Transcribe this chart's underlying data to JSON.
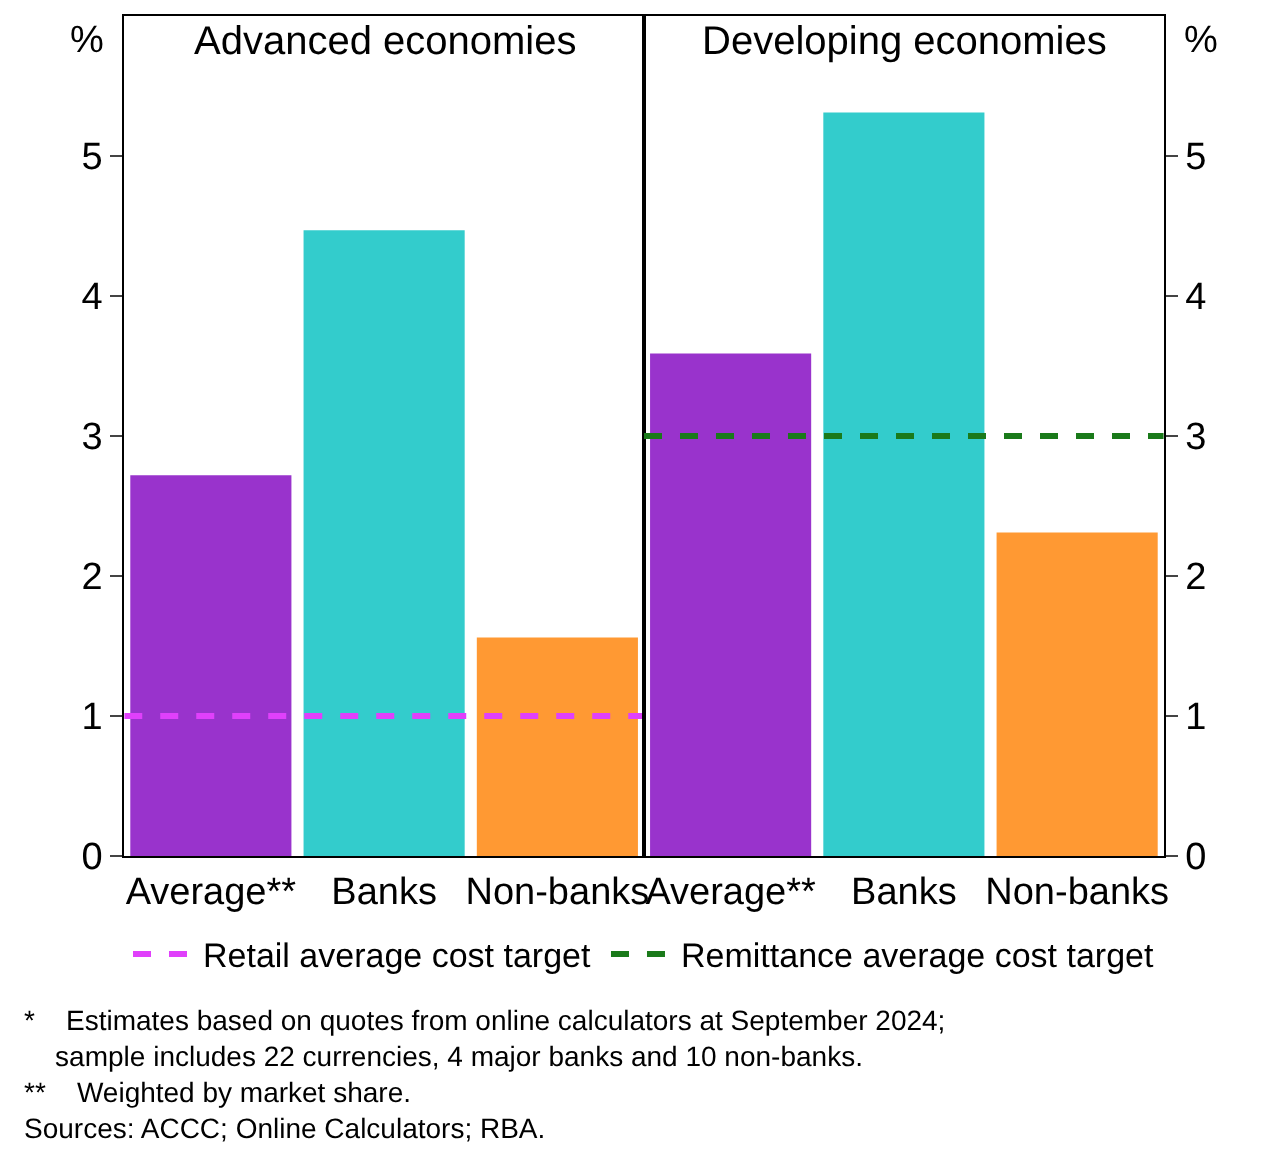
{
  "chart_data": [
    {
      "type": "bar",
      "title": "Advanced economies",
      "ylabel": "%",
      "categories": [
        "Average**",
        "Banks",
        "Non-banks"
      ],
      "values": [
        2.72,
        4.47,
        1.56
      ],
      "colors": [
        "#9933cc",
        "#33cccc",
        "#ff9933"
      ],
      "ylim": [
        0,
        6
      ],
      "yticks": [
        0,
        1,
        2,
        3,
        4,
        5
      ],
      "grid": false,
      "legend": "bottom",
      "ref_lines": [
        {
          "axis": "y",
          "value": 1,
          "label": "Retail average cost target",
          "color": "#e040fb",
          "line_style": "dashed"
        }
      ]
    },
    {
      "type": "bar",
      "title": "Developing economies",
      "ylabel": "%",
      "categories": [
        "Average**",
        "Banks",
        "Non-banks"
      ],
      "values": [
        3.59,
        5.31,
        2.31
      ],
      "colors": [
        "#9933cc",
        "#33cccc",
        "#ff9933"
      ],
      "ylim": [
        0,
        6
      ],
      "yticks": [
        0,
        1,
        2,
        3,
        4,
        5
      ],
      "grid": false,
      "legend": "bottom",
      "ref_lines": [
        {
          "axis": "y",
          "value": 3,
          "label": "Remittance average cost target",
          "color": "#1a7a1a",
          "line_style": "dashed"
        }
      ],
      "annotations": [
        "*\tEstimates based on quotes from online calculators at September 2024;\n\tsample includes 22 currencies, 4 major banks and 10 non-banks.",
        "**\tWeighted by market share.",
        "Sources: ACCC; Online Calculators; RBA."
      ]
    }
  ]
}
